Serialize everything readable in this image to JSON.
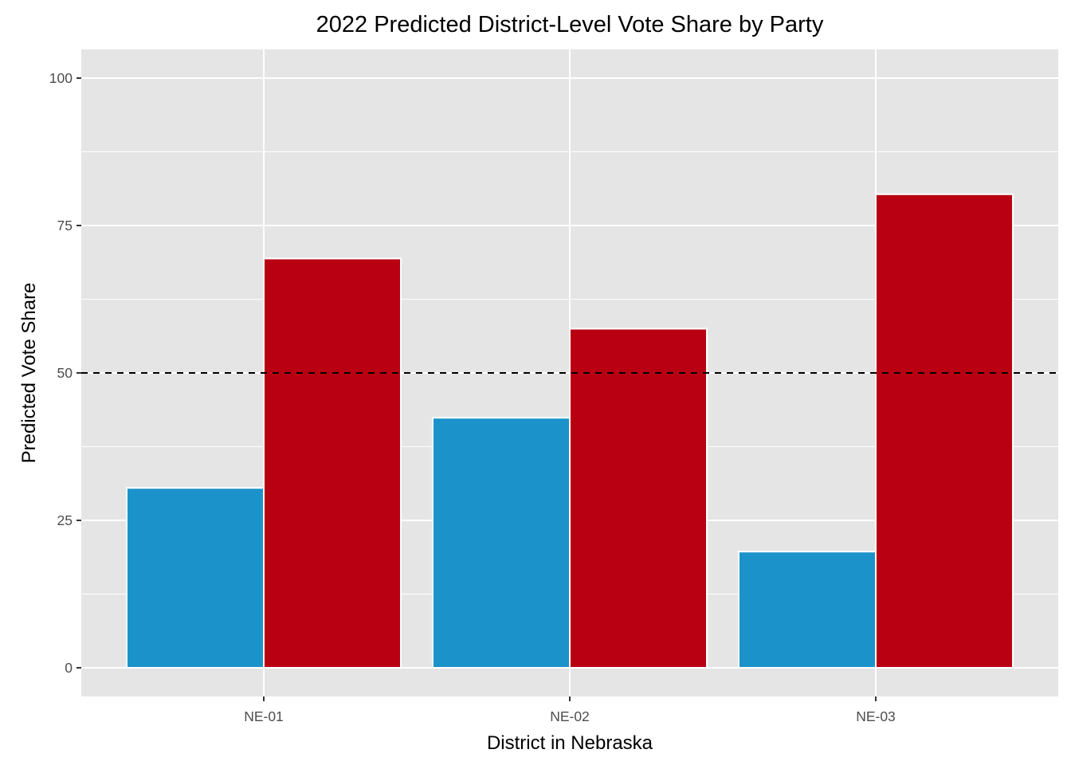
{
  "chart_data": {
    "type": "bar",
    "title": "2022 Predicted District-Level Vote Share by Party",
    "xlabel": "District in Nebraska",
    "ylabel": "Predicted Vote Share",
    "categories": [
      "NE-01",
      "NE-02",
      "NE-03"
    ],
    "series": [
      {
        "color": "#1B92C9",
        "values": [
          30.5,
          42.4,
          19.7
        ]
      },
      {
        "color": "#B80012",
        "values": [
          69.4,
          57.5,
          80.3
        ]
      }
    ],
    "ylim": [
      -5,
      105
    ],
    "yticks": [
      0,
      25,
      50,
      75,
      100
    ],
    "ytick_labels": [
      "0",
      "25",
      "50",
      "75",
      "100"
    ],
    "reference_line": {
      "y": 50,
      "style": "dashed",
      "color": "#000000"
    },
    "grid": true,
    "legend": "none",
    "panel_color": "#E5E5E5",
    "grid_color": "#FFFFFF"
  }
}
